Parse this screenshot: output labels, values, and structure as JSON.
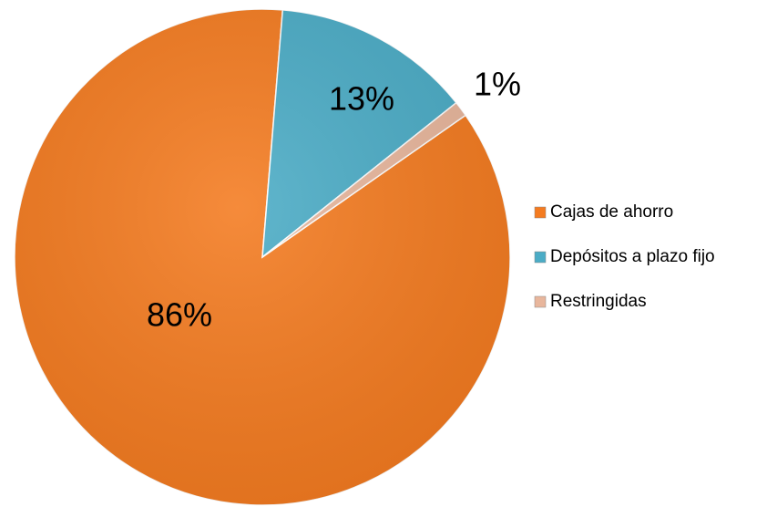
{
  "chart_data": {
    "type": "pie",
    "categories": [
      "Cajas de ahorro",
      "Depósitos a plazo fijo",
      "Restringidas"
    ],
    "values": [
      86,
      13,
      1
    ],
    "value_labels": [
      "86%",
      "13%",
      "1%"
    ],
    "colors": [
      "#f47b20",
      "#4bacc6",
      "#e8b69c"
    ],
    "legend": "right"
  }
}
